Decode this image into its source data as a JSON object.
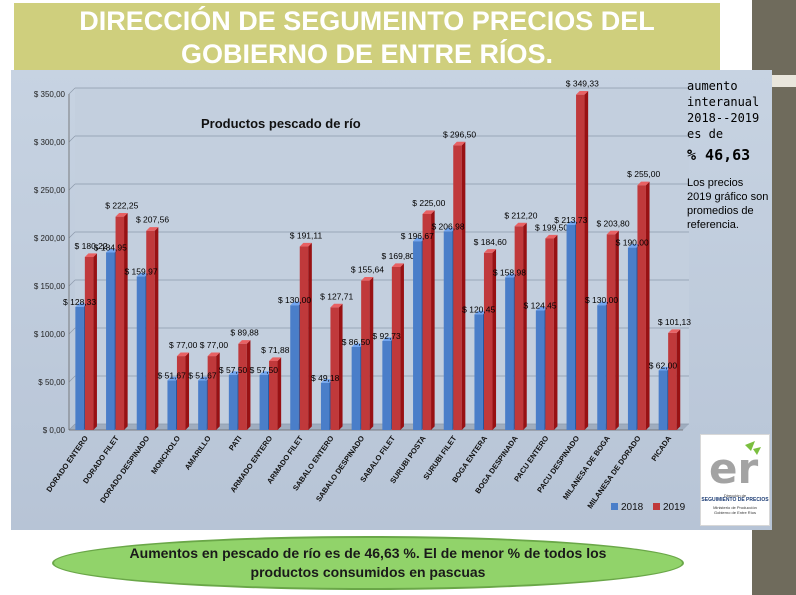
{
  "header": {
    "title": "DIRECCIÓN DE SEGUMEINTO PRECIOS DEL GOBIERNO DE ENTRE RÍOS."
  },
  "annotation": {
    "line1": "aumento",
    "line2": "interanual",
    "line3": "2018--2019",
    "line4": "es de",
    "percent": "% 46,63",
    "note": "Los precios 2019 gráfico son promedios de referencia."
  },
  "logo": {
    "mark": "er",
    "line1": "Dirección de",
    "line2": "SEGUIMIENTO DE PRECIOS",
    "line3": "Ministerio de Producción",
    "line4": "Gobierno de Entre Ríos"
  },
  "footer": {
    "text": "Aumentos en pescado de río es de 46,63 %. El de menor % de todos los productos consumidos en pascuas"
  },
  "colors": {
    "series_2018": "#4a7ec9",
    "series_2019": "#c0393b",
    "title_bg": "#cfcf7d",
    "footer_bg": "#91d36a"
  },
  "chart_data": {
    "type": "bar",
    "title": "Productos  pescado de río",
    "categories": [
      "DORADO ENTERO",
      "DORADO FILET",
      "DORADO DESPINADO",
      "MONCHOLO",
      "AMARILLO",
      "PATI",
      "ARMADO ENTERO",
      "ARMADO FILET",
      "SABALO ENTERO",
      "SABALO DESPINADO",
      "SABALO FILET",
      "SURUBI POSTA",
      "SURUBI FILET",
      "BOGA ENTERA",
      "BOGA DESPINADA",
      "PACU ENTERO",
      "PACU DESPINADO",
      "MILANESA DE BOGA",
      "MILANESA DE DORADO",
      "PICADA"
    ],
    "series": [
      {
        "name": "2018",
        "values": [
          128.33,
          184.95,
          159.97,
          51.67,
          51.67,
          57.5,
          57.5,
          130.0,
          49.18,
          86.5,
          92.73,
          196.67,
          206.98,
          120.45,
          158.98,
          124.45,
          213.73,
          130.0,
          190.0,
          62.0
        ],
        "labels": [
          "$ 128,33",
          "$ 184,95",
          "$ 159,97",
          "$ 51,67",
          "$ 51,67",
          "$ 57,50",
          "$ 57,50",
          "$ 130,00",
          "$ 49,18",
          "$ 86,50",
          "$ 92,73",
          "$ 196,67",
          "$ 206,98",
          "$ 120,45",
          "$ 158,98",
          "$ 124,45",
          "$ 213,73",
          "$ 130,00",
          "$ 190,00",
          "$ 62,00"
        ]
      },
      {
        "name": "2019",
        "values": [
          180.22,
          222.25,
          207.56,
          77.0,
          77.0,
          89.88,
          71.88,
          191.11,
          127.71,
          155.64,
          169.8,
          225.0,
          296.5,
          184.6,
          212.2,
          199.5,
          349.33,
          203.8,
          255.0,
          101.13
        ],
        "labels": [
          "$ 180,22",
          "$ 222,25",
          "$ 207,56",
          "$ 77,00",
          "$ 77,00",
          "$ 89,88",
          "$ 71,88",
          "$ 191,11",
          "$ 127,71",
          "$ 155,64",
          "$ 169,80",
          "$ 225,00",
          "$ 296,50",
          "$ 184,60",
          "$ 212,20",
          "$ 199,50",
          "$ 349,33",
          "$ 203,80",
          "$ 255,00",
          "$ 101,13"
        ]
      }
    ],
    "yticks": [
      "$ 0,00",
      "$ 50,00",
      "$ 100,00",
      "$ 150,00",
      "$ 200,00",
      "$ 250,00",
      "$ 300,00",
      "$ 350,00"
    ],
    "ylim": [
      0,
      350
    ],
    "grid": true,
    "legend": "bottom-right"
  }
}
